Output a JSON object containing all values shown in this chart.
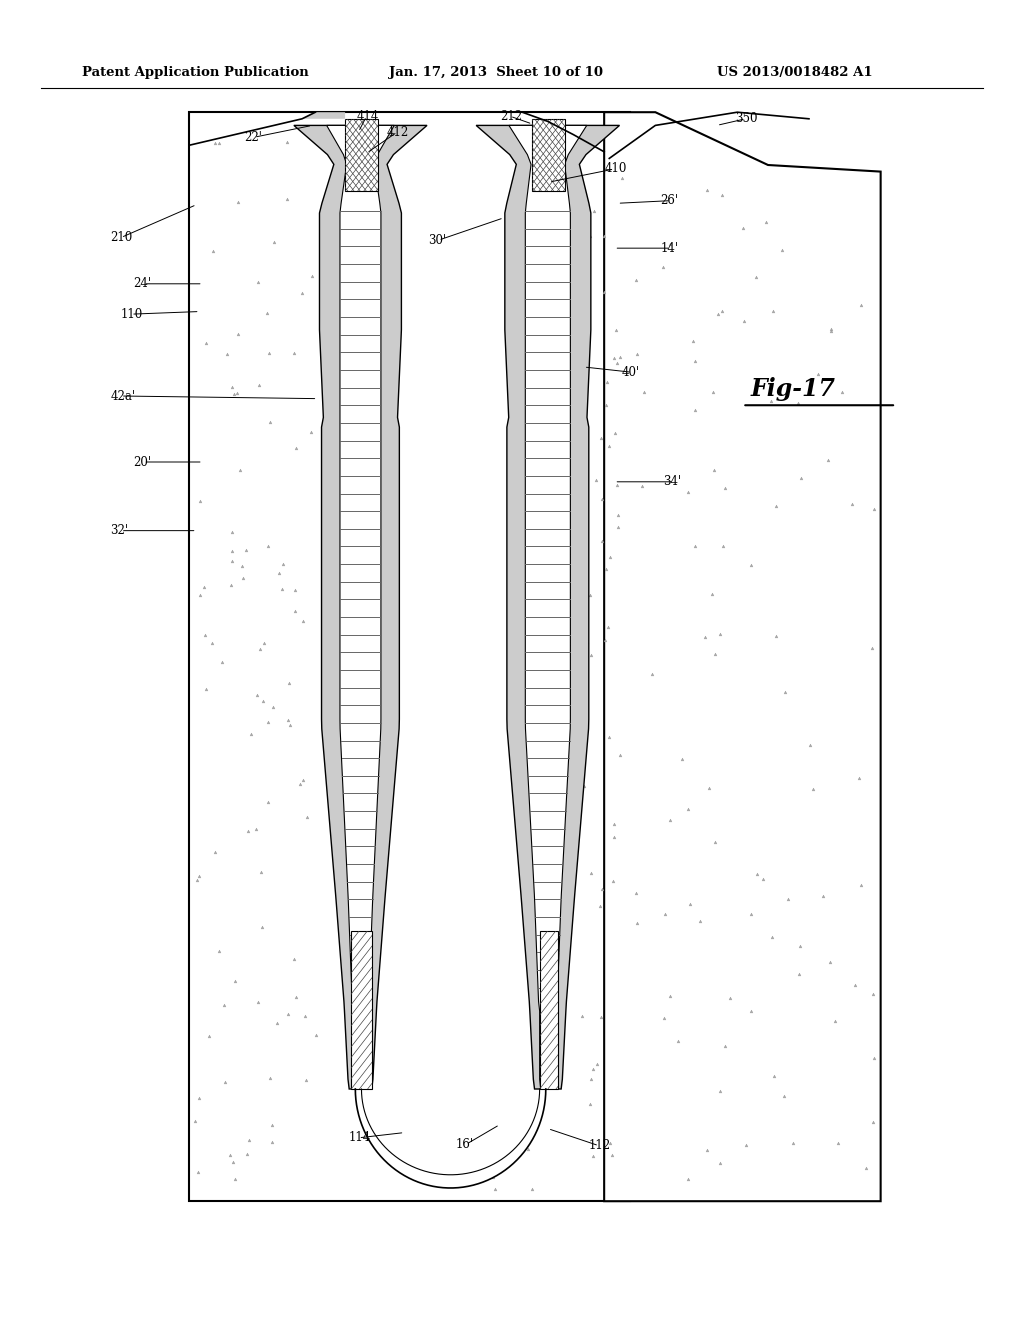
{
  "bg_color": "#ffffff",
  "header_left": "Patent Application Publication",
  "header_center": "Jan. 17, 2013  Sheet 10 of 10",
  "header_right": "US 2013/0018482 A1",
  "fig_label": "Fig-17"
}
